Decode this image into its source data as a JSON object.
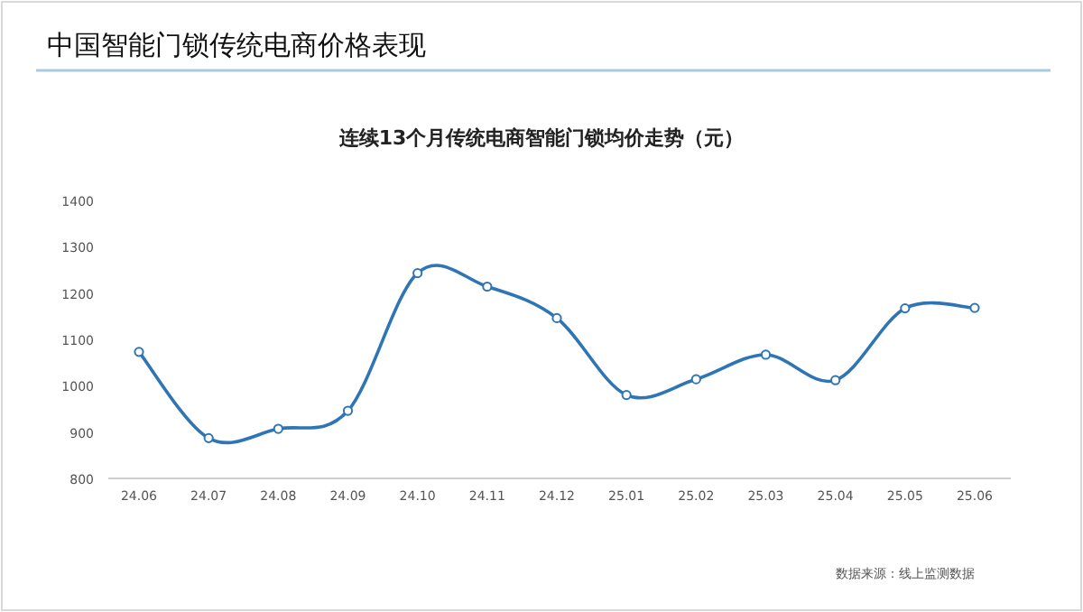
{
  "chart_data": {
    "type": "line",
    "title": "中国智能门锁传统电商价格表现",
    "subtitle": "连续13个月传统电商智能门锁均价走势（元）",
    "categories": [
      "24.06",
      "24.07",
      "24.08",
      "24.09",
      "24.10",
      "24.11",
      "24.12",
      "25.01",
      "25.02",
      "25.03",
      "25.04",
      "25.05",
      "25.06"
    ],
    "series": [
      {
        "color": "#2e75b6",
        "values": [
          1073,
          887,
          907,
          946,
          1243,
          1214,
          1146,
          980,
          1014,
          1067,
          1012,
          1167,
          1168
        ]
      }
    ],
    "ylim": [
      800,
      1400
    ],
    "yticks": [
      800,
      900,
      1000,
      1100,
      1200,
      1300,
      1400
    ],
    "grid": false,
    "marker": "circle",
    "line_style": "solid",
    "annotations": [
      "数据来源：线上监测数据"
    ]
  }
}
